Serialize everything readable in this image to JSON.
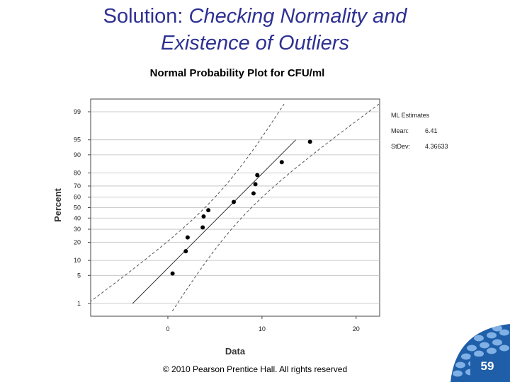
{
  "slide": {
    "title_plain": "Solution: ",
    "title_italic_1": "Checking Normality and",
    "title_italic_2": "Existence of Outliers",
    "footer": "© 2010 Pearson Prentice Hall. All rights reserved",
    "page_number": "59"
  },
  "chart_data": {
    "type": "scatter",
    "title": "Normal Probability Plot for CFU/ml",
    "xlabel": "Data",
    "ylabel": "Percent",
    "x_ticks": [
      0,
      10,
      20
    ],
    "xlim": [
      -8.2,
      22.5
    ],
    "y_ticks": [
      1,
      5,
      10,
      20,
      30,
      40,
      50,
      60,
      70,
      80,
      90,
      95,
      99
    ],
    "y_scale": "normal-probability",
    "grid": "horizontal",
    "legend": {
      "title": "ML Estimates",
      "entries": [
        {
          "label": "Mean:",
          "value": "6.41"
        },
        {
          "label": "StDev:",
          "value": "4.36633"
        }
      ]
    },
    "points": [
      {
        "x": 0.5,
        "y": 5.5
      },
      {
        "x": 1.9,
        "y": 14.5
      },
      {
        "x": 2.1,
        "y": 23.5
      },
      {
        "x": 3.7,
        "y": 31.5
      },
      {
        "x": 3.8,
        "y": 41.5
      },
      {
        "x": 4.3,
        "y": 47.5
      },
      {
        "x": 7.0,
        "y": 55.5
      },
      {
        "x": 9.1,
        "y": 63.5
      },
      {
        "x": 9.3,
        "y": 71.5
      },
      {
        "x": 9.5,
        "y": 78.5
      },
      {
        "x": 12.1,
        "y": 86.5
      },
      {
        "x": 15.1,
        "y": 94.5
      }
    ],
    "fit_line": {
      "mean": 6.41,
      "stdev": 4.36633
    },
    "confidence_band": "dashed"
  }
}
